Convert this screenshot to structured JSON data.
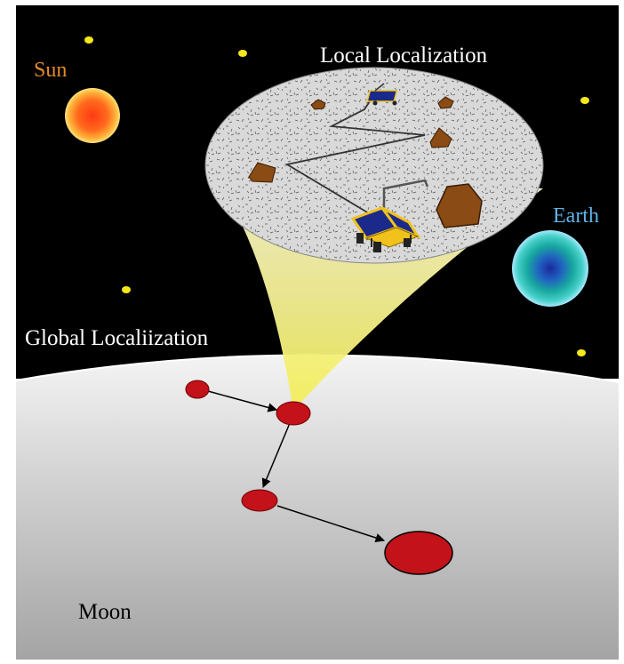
{
  "labels": {
    "sun": "Sun",
    "earth": "Earth",
    "local": "Local Localization",
    "global": "Global Localiization",
    "moon": "Moon"
  },
  "colors": {
    "sky": "#000000",
    "moon_surface_light": "#f2f2f2",
    "moon_surface_dark": "#9a9a9a",
    "sun_text": "#e38a2a",
    "earth_text": "#5fb4e8",
    "star": "#f4e71b",
    "site_marker": "#c4121a",
    "beam": "#f6f08a",
    "rock": "#8a4b14",
    "rover_panel": "#1b2a8a",
    "rover_frame": "#f1c21b"
  }
}
